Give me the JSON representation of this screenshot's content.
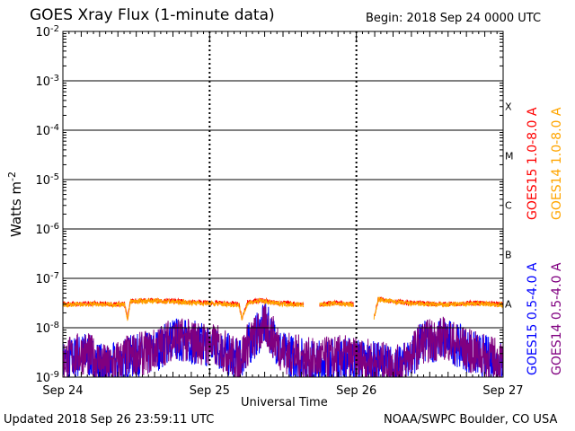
{
  "header": {
    "title": "GOES Xray Flux (1-minute data)",
    "begin": "Begin:  2018 Sep 24 0000 UTC"
  },
  "footer": {
    "updated": "Updated 2018 Sep 26 23:59:11 UTC",
    "credit": "NOAA/SWPC Boulder, CO USA"
  },
  "chart_data": {
    "type": "line",
    "title": "GOES Xray Flux (1-minute data)",
    "xlabel": "Universal Time",
    "ylabel": "Watts m",
    "ylabel_sup": "-2",
    "y_scale": "log",
    "ylim": [
      1e-09,
      0.01
    ],
    "y_ticks": [
      {
        "base": "10",
        "exp": "-9"
      },
      {
        "base": "10",
        "exp": "-8"
      },
      {
        "base": "10",
        "exp": "-7"
      },
      {
        "base": "10",
        "exp": "-6"
      },
      {
        "base": "10",
        "exp": "-5"
      },
      {
        "base": "10",
        "exp": "-4"
      },
      {
        "base": "10",
        "exp": "-3"
      },
      {
        "base": "10",
        "exp": "-2"
      }
    ],
    "x_ticks": [
      "Sep 24",
      "Sep 25",
      "Sep 26",
      "Sep 27"
    ],
    "xlim_days": [
      "2018-09-24",
      "2018-09-27"
    ],
    "flare_classes": [
      "A",
      "B",
      "C",
      "M",
      "X"
    ],
    "grid": true,
    "legend_position": "right-vertical",
    "series": [
      {
        "name": "GOES15 1.0-8.0 A",
        "color": "#ff0000",
        "band": "long",
        "points": [
          [
            0.0,
            3e-08
          ],
          [
            0.2,
            3.1e-08
          ],
          [
            0.42,
            3e-08
          ],
          [
            0.44,
            1.5e-08
          ],
          [
            0.46,
            3.5e-08
          ],
          [
            0.6,
            3.6e-08
          ],
          [
            0.8,
            3.4e-08
          ],
          [
            1.0,
            3.2e-08
          ],
          [
            1.2,
            3e-08
          ],
          [
            1.22,
            1.5e-08
          ],
          [
            1.26,
            3.3e-08
          ],
          [
            1.35,
            3.6e-08
          ],
          [
            1.45,
            3.2e-08
          ],
          [
            1.64,
            3e-08
          ],
          [
            1.65,
            null
          ],
          [
            1.75,
            3e-08
          ],
          [
            1.85,
            3.2e-08
          ],
          [
            1.98,
            3e-08
          ],
          [
            2.0,
            null
          ],
          [
            2.08,
            null
          ],
          [
            2.12,
            1.6e-08
          ],
          [
            2.15,
            3.8e-08
          ],
          [
            2.35,
            3.2e-08
          ],
          [
            2.6,
            3e-08
          ],
          [
            2.8,
            3.2e-08
          ],
          [
            3.0,
            3e-08
          ]
        ]
      },
      {
        "name": "GOES14 1.0-8.0 A",
        "color": "#ffa500",
        "band": "long",
        "points": [
          [
            0.0,
            2.9e-08
          ],
          [
            0.2,
            3e-08
          ],
          [
            0.42,
            2.9e-08
          ],
          [
            0.44,
            1.5e-08
          ],
          [
            0.46,
            3.4e-08
          ],
          [
            0.6,
            3.5e-08
          ],
          [
            0.8,
            3.3e-08
          ],
          [
            1.0,
            3.1e-08
          ],
          [
            1.2,
            2.9e-08
          ],
          [
            1.22,
            1.5e-08
          ],
          [
            1.26,
            3.2e-08
          ],
          [
            1.35,
            3.5e-08
          ],
          [
            1.45,
            3.1e-08
          ],
          [
            1.64,
            2.9e-08
          ],
          [
            1.65,
            null
          ],
          [
            1.75,
            2.9e-08
          ],
          [
            1.85,
            3.1e-08
          ],
          [
            1.98,
            2.9e-08
          ],
          [
            2.0,
            null
          ],
          [
            2.08,
            null
          ],
          [
            2.12,
            1.6e-08
          ],
          [
            2.15,
            3.7e-08
          ],
          [
            2.35,
            3.1e-08
          ],
          [
            2.6,
            2.9e-08
          ],
          [
            2.8,
            3.1e-08
          ],
          [
            3.0,
            2.9e-08
          ]
        ]
      },
      {
        "name": "GOES15 0.5-4.0 A",
        "color": "#0000ff",
        "band": "short",
        "points": [
          [
            0.0,
            2e-09
          ],
          [
            0.15,
            3e-09
          ],
          [
            0.3,
            1.5e-09
          ],
          [
            0.45,
            2.5e-09
          ],
          [
            0.6,
            3e-09
          ],
          [
            0.75,
            6e-09
          ],
          [
            0.9,
            5e-09
          ],
          [
            1.05,
            4e-09
          ],
          [
            1.2,
            2e-09
          ],
          [
            1.25,
            4e-09
          ],
          [
            1.38,
            1.2e-08
          ],
          [
            1.5,
            3e-09
          ],
          [
            1.7,
            2e-09
          ],
          [
            1.9,
            2.5e-09
          ],
          [
            2.1,
            2e-09
          ],
          [
            2.3,
            1.5e-09
          ],
          [
            2.45,
            5e-09
          ],
          [
            2.6,
            6e-09
          ],
          [
            2.8,
            3e-09
          ],
          [
            3.0,
            2e-09
          ]
        ]
      },
      {
        "name": "GOES14 0.5-4.0 A",
        "color": "#800080",
        "band": "short",
        "points": [
          [
            0.0,
            2.2e-09
          ],
          [
            0.15,
            3.2e-09
          ],
          [
            0.3,
            1.6e-09
          ],
          [
            0.45,
            2.7e-09
          ],
          [
            0.6,
            3.2e-09
          ],
          [
            0.75,
            6.2e-09
          ],
          [
            0.9,
            5.2e-09
          ],
          [
            1.05,
            4.2e-09
          ],
          [
            1.2,
            2.2e-09
          ],
          [
            1.25,
            4.2e-09
          ],
          [
            1.38,
            1.1e-08
          ],
          [
            1.5,
            3.2e-09
          ],
          [
            1.7,
            2.2e-09
          ],
          [
            1.9,
            2.6e-09
          ],
          [
            2.1,
            2.1e-09
          ],
          [
            2.3,
            1.6e-09
          ],
          [
            2.45,
            5.2e-09
          ],
          [
            2.6,
            6.2e-09
          ],
          [
            2.8,
            3.1e-09
          ],
          [
            3.0,
            2.1e-09
          ]
        ]
      }
    ]
  }
}
